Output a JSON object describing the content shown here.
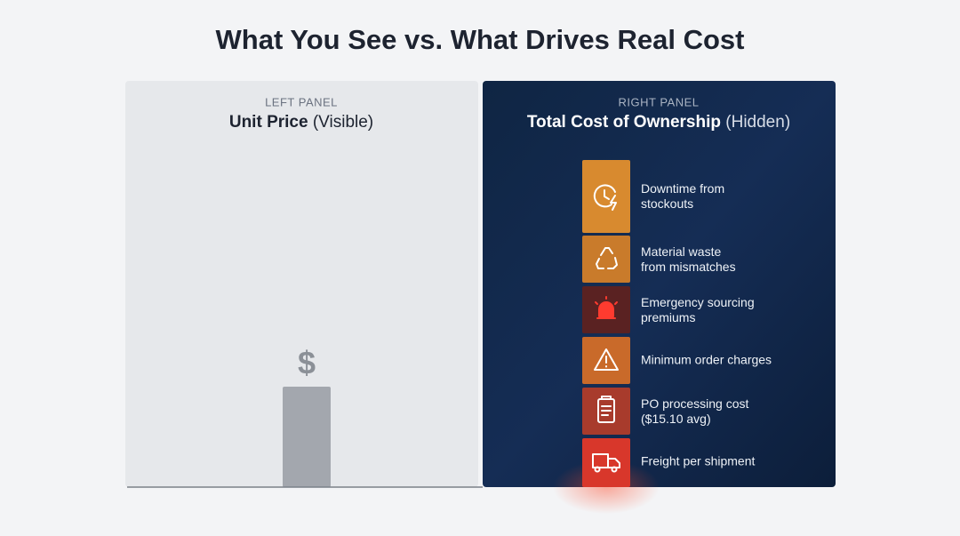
{
  "title": "What You See vs. What Drives Real Cost",
  "left_panel": {
    "label": "LEFT PANEL",
    "title_bold": "Unit Price",
    "title_rest": "(Visible)",
    "symbol": "$"
  },
  "right_panel": {
    "label": "RIGHT PANEL",
    "title_bold": "Total Cost of Ownership",
    "title_rest": "(Hidden)",
    "items": [
      {
        "lines": [
          "Downtime from",
          "stockouts"
        ]
      },
      {
        "lines": [
          "Material waste",
          "from mismatches"
        ]
      },
      {
        "lines": [
          "Emergency sourcing",
          "premiums"
        ]
      },
      {
        "lines": [
          "Minimum order charges"
        ]
      },
      {
        "lines": [
          "PO processing cost",
          "($15.10 avg)"
        ]
      },
      {
        "lines": [
          "Freight per shipment"
        ]
      }
    ]
  }
}
